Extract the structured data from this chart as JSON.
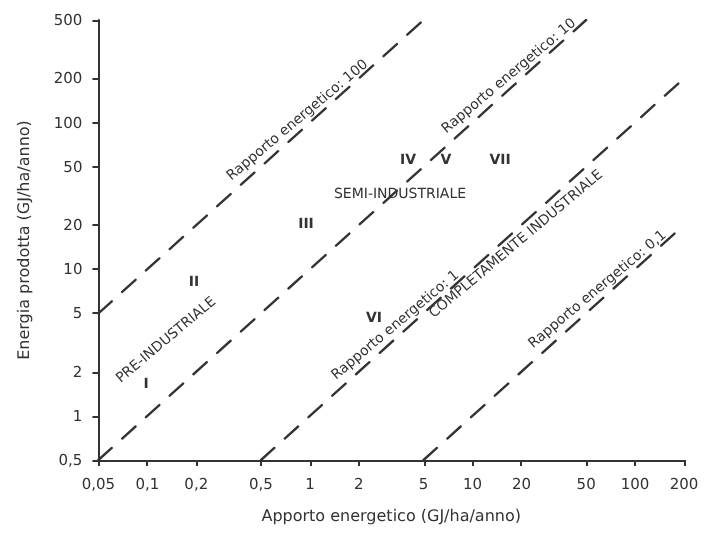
{
  "chart_data": {
    "type": "line",
    "xlabel": "Apporto energetico (GJ/ha/anno)",
    "ylabel": "Energia prodotta (GJ/ha/anno)",
    "log": "xy",
    "grid": false,
    "legend": false,
    "marker": "none",
    "line_style": "dashed",
    "xlim": [
      0.05,
      200
    ],
    "ylim": [
      0.5,
      500
    ],
    "xticks": [
      {
        "value": 0.05,
        "label": "0,05"
      },
      {
        "value": 0.1,
        "label": "0,1"
      },
      {
        "value": 0.2,
        "label": "0,2"
      },
      {
        "value": 0.5,
        "label": "0,5"
      },
      1,
      2,
      5,
      10,
      20,
      50,
      100,
      200
    ],
    "yticks": [
      {
        "value": 0.5,
        "label": "0,5"
      },
      1,
      2,
      5,
      10,
      20,
      50,
      100,
      200,
      500
    ],
    "series": [
      {
        "name": "Rapporto energetico: 100",
        "color": "#333333",
        "x": [
          0.05,
          1,
          5
        ],
        "values": [
          5,
          100,
          500
        ]
      },
      {
        "name": "Rapporto energetico: 10",
        "color": "#333333",
        "x": [
          0.05,
          20,
          50
        ],
        "values": [
          0.5,
          200,
          500
        ]
      },
      {
        "name": "Rapporto energetico: 1",
        "color": "#333333",
        "x": [
          0.5,
          4,
          200
        ],
        "values": [
          0.5,
          4,
          200
        ]
      },
      {
        "name": "Rapporto energetico: 0,1",
        "color": "#333333",
        "x": [
          5,
          70,
          200
        ],
        "values": [
          0.5,
          7,
          20
        ]
      }
    ],
    "annotations": [
      "I",
      "II",
      "III",
      "IV",
      "V",
      "VI",
      "VII",
      "PRE-INDUSTRIALE",
      "SEMI-INDUSTRIALE",
      "COMPLETAMENTE INDUSTRIALE"
    ]
  }
}
